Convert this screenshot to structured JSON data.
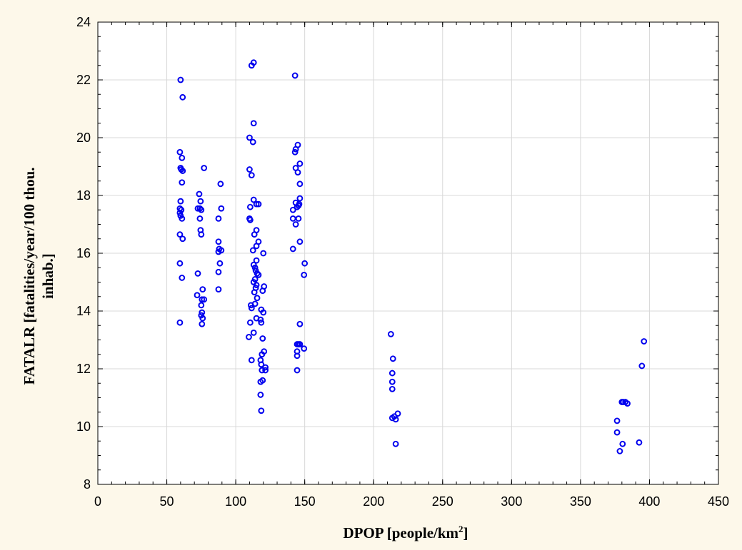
{
  "chart_data": {
    "type": "scatter",
    "xlabel": "DPOP [people/km",
    "xlabel_sup": "2",
    "xlabel_end": "]",
    "ylabel_line1": "FATALR [fatalities/year/100 thou.",
    "ylabel_line2": "inhab.]",
    "xlim": [
      0,
      450
    ],
    "ylim": [
      8,
      24
    ],
    "x_ticks": [
      0,
      50,
      100,
      150,
      200,
      250,
      300,
      350,
      400,
      450
    ],
    "y_ticks": [
      8,
      10,
      12,
      14,
      16,
      18,
      20,
      22,
      24
    ],
    "grid": true,
    "marker": "open-circle",
    "colors": {
      "marker": "#0000ee",
      "grid": "#d8d8d8",
      "plot_bg": "#ffffff",
      "page_bg": "#fdf8ea"
    },
    "points": [
      [
        60,
        22.0
      ],
      [
        61.5,
        21.4
      ],
      [
        59.5,
        19.5
      ],
      [
        61,
        19.3
      ],
      [
        60,
        18.95
      ],
      [
        60.5,
        18.9
      ],
      [
        61.5,
        18.85
      ],
      [
        61,
        18.45
      ],
      [
        60,
        17.8
      ],
      [
        59.5,
        17.55
      ],
      [
        60.5,
        17.5
      ],
      [
        59.5,
        17.4
      ],
      [
        60,
        17.3
      ],
      [
        61,
        17.2
      ],
      [
        59.5,
        16.65
      ],
      [
        61.5,
        16.5
      ],
      [
        59.5,
        15.65
      ],
      [
        61,
        15.15
      ],
      [
        59.5,
        13.6
      ],
      [
        73.5,
        18.05
      ],
      [
        74.5,
        17.8
      ],
      [
        72.5,
        17.55
      ],
      [
        74,
        17.55
      ],
      [
        75,
        17.5
      ],
      [
        74,
        17.2
      ],
      [
        74.5,
        16.8
      ],
      [
        75,
        16.65
      ],
      [
        72.5,
        15.3
      ],
      [
        72,
        14.55
      ],
      [
        77,
        18.95
      ],
      [
        76,
        14.75
      ],
      [
        77,
        14.4
      ],
      [
        75.5,
        14.4
      ],
      [
        75,
        14.2
      ],
      [
        75.5,
        13.95
      ],
      [
        75,
        13.85
      ],
      [
        76,
        13.75
      ],
      [
        75.5,
        13.55
      ],
      [
        89,
        18.4
      ],
      [
        89.5,
        17.55
      ],
      [
        87.5,
        17.2
      ],
      [
        87.5,
        16.4
      ],
      [
        88,
        16.15
      ],
      [
        87.5,
        16.05
      ],
      [
        89.5,
        16.1
      ],
      [
        88.5,
        15.65
      ],
      [
        87.5,
        15.35
      ],
      [
        87.5,
        14.75
      ],
      [
        111.5,
        22.5
      ],
      [
        113,
        22.6
      ],
      [
        113,
        20.5
      ],
      [
        110,
        20.0
      ],
      [
        112.5,
        19.85
      ],
      [
        110,
        18.9
      ],
      [
        111.5,
        18.7
      ],
      [
        113,
        17.85
      ],
      [
        115,
        17.7
      ],
      [
        116.5,
        17.7
      ],
      [
        110.5,
        17.6
      ],
      [
        110,
        17.2
      ],
      [
        110.5,
        17.15
      ],
      [
        115,
        16.8
      ],
      [
        113.5,
        16.65
      ],
      [
        116.5,
        16.4
      ],
      [
        115,
        16.25
      ],
      [
        112.5,
        16.1
      ],
      [
        120,
        16.0
      ],
      [
        115,
        15.75
      ],
      [
        113,
        15.6
      ],
      [
        114,
        15.5
      ],
      [
        114.5,
        15.4
      ],
      [
        115.5,
        15.3
      ],
      [
        116.5,
        15.25
      ],
      [
        114,
        15.1
      ],
      [
        113,
        15.0
      ],
      [
        115,
        14.9
      ],
      [
        120.5,
        14.85
      ],
      [
        114.5,
        14.8
      ],
      [
        119.5,
        14.7
      ],
      [
        113.5,
        14.65
      ],
      [
        115.5,
        14.45
      ],
      [
        114,
        14.25
      ],
      [
        111,
        14.2
      ],
      [
        111.5,
        14.1
      ],
      [
        118.5,
        14.05
      ],
      [
        120,
        13.95
      ],
      [
        115,
        13.75
      ],
      [
        118,
        13.7
      ],
      [
        118.5,
        13.6
      ],
      [
        110.5,
        13.6
      ],
      [
        113,
        13.25
      ],
      [
        109.5,
        13.1
      ],
      [
        119.5,
        13.05
      ],
      [
        120.5,
        12.6
      ],
      [
        119,
        12.5
      ],
      [
        118,
        12.3
      ],
      [
        111.5,
        12.3
      ],
      [
        118.5,
        12.15
      ],
      [
        121.5,
        12.05
      ],
      [
        119,
        11.95
      ],
      [
        121.5,
        11.95
      ],
      [
        119.5,
        11.6
      ],
      [
        118,
        11.55
      ],
      [
        118,
        11.1
      ],
      [
        118.5,
        10.55
      ],
      [
        143,
        22.15
      ],
      [
        145,
        19.75
      ],
      [
        143.5,
        19.6
      ],
      [
        143,
        19.5
      ],
      [
        146.5,
        19.1
      ],
      [
        143.5,
        18.95
      ],
      [
        145,
        18.8
      ],
      [
        146.5,
        18.4
      ],
      [
        146.5,
        17.9
      ],
      [
        143.5,
        17.75
      ],
      [
        146,
        17.7
      ],
      [
        145.5,
        17.65
      ],
      [
        144.5,
        17.6
      ],
      [
        141.5,
        17.5
      ],
      [
        145.5,
        17.2
      ],
      [
        141.5,
        17.2
      ],
      [
        143.5,
        17.0
      ],
      [
        146.5,
        16.4
      ],
      [
        141.5,
        16.15
      ],
      [
        150,
        15.65
      ],
      [
        149.5,
        15.25
      ],
      [
        146.5,
        13.55
      ],
      [
        144.5,
        12.85
      ],
      [
        145.5,
        12.85
      ],
      [
        146.5,
        12.85
      ],
      [
        149.5,
        12.7
      ],
      [
        144.5,
        12.6
      ],
      [
        144.5,
        12.45
      ],
      [
        144.5,
        11.95
      ],
      [
        212.5,
        13.2
      ],
      [
        214,
        12.35
      ],
      [
        213.5,
        11.85
      ],
      [
        213.5,
        11.55
      ],
      [
        213.5,
        11.3
      ],
      [
        217.5,
        10.45
      ],
      [
        213.5,
        10.3
      ],
      [
        215,
        10.35
      ],
      [
        216,
        10.25
      ],
      [
        216,
        9.4
      ],
      [
        376.5,
        10.2
      ],
      [
        376.5,
        9.8
      ],
      [
        380.5,
        9.4
      ],
      [
        378.5,
        9.15
      ],
      [
        381,
        10.85
      ],
      [
        380,
        10.85
      ],
      [
        382.5,
        10.85
      ],
      [
        384,
        10.8
      ],
      [
        396,
        12.95
      ],
      [
        394.5,
        12.1
      ],
      [
        392.5,
        9.45
      ]
    ]
  }
}
